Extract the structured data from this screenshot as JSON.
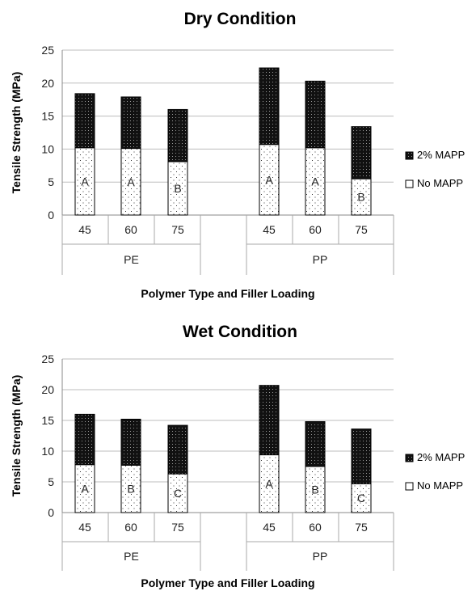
{
  "chart_data": [
    {
      "type": "bar",
      "stacked": true,
      "title": "Dry Condition",
      "xlabel": "Polymer Type and Filler Loading",
      "ylabel": "Tensile Strength  (MPa)",
      "ylim": [
        0,
        25
      ],
      "yticks": [
        "0",
        "5",
        "10",
        "15",
        "20",
        "25"
      ],
      "groups": [
        {
          "name": "PE",
          "categories": [
            "45",
            "60",
            "75"
          ]
        },
        {
          "name": "PP",
          "categories": [
            "45",
            "60",
            "75"
          ]
        }
      ],
      "series": [
        {
          "name": "No MAPP",
          "values": [
            10.2,
            10.1,
            8.1,
            10.7,
            10.2,
            5.5
          ],
          "labels": [
            "A",
            "A",
            "B",
            "A",
            "A",
            "B"
          ]
        },
        {
          "name": "2% MAPP",
          "values": [
            8.2,
            7.8,
            7.9,
            11.6,
            10.1,
            7.9
          ]
        }
      ],
      "legend": "right",
      "grid": true
    },
    {
      "type": "bar",
      "stacked": true,
      "title": "Wet Condition",
      "xlabel": "Polymer Type and Filler Loading",
      "ylabel": "Tensile Strength (MPa)",
      "ylim": [
        0,
        25
      ],
      "yticks": [
        "0",
        "5",
        "10",
        "15",
        "20",
        "25"
      ],
      "groups": [
        {
          "name": "PE",
          "categories": [
            "45",
            "60",
            "75"
          ]
        },
        {
          "name": "PP",
          "categories": [
            "45",
            "60",
            "75"
          ]
        }
      ],
      "series": [
        {
          "name": "No MAPP",
          "values": [
            7.8,
            7.7,
            6.3,
            9.4,
            7.5,
            4.7
          ],
          "labels": [
            "A",
            "B",
            "C",
            "A",
            "B",
            "C"
          ]
        },
        {
          "name": "2% MAPP",
          "values": [
            8.2,
            7.5,
            7.9,
            11.3,
            7.3,
            8.9
          ]
        }
      ],
      "legend": "right",
      "grid": true
    }
  ]
}
